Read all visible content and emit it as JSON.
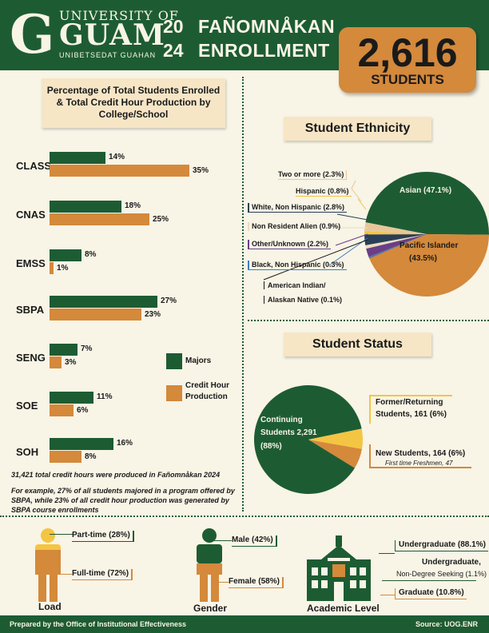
{
  "header": {
    "university_line1": "UNIVERSITY OF",
    "university_line2": "GUAM",
    "university_line3": "UNIBETSEDAT GUAHAN",
    "logo_letter": "G",
    "year_top": "20",
    "year_bottom": "24",
    "title_line1": "FAÑOMNÅKAN",
    "title_line2": "ENROLLMENT"
  },
  "total": {
    "count": "2,616",
    "label": "STUDENTS"
  },
  "college_chart": {
    "title": "Percentage of Total Students Enrolled & Total Credit Hour Production by College/School",
    "legend_majors": "Majors",
    "legend_credit": "Credit Hour Production",
    "note1": "31,421 total credit hours were produced in Fañomnåkan 2024",
    "note2": "For example, 27% of all students majored in a program offered by SBPA, while 23% of all credit hour production was generated by SBPA course enrollments"
  },
  "chart_data": [
    {
      "type": "bar",
      "categories": [
        "CLASS",
        "CNAS",
        "EMSS",
        "SBPA",
        "SENG",
        "SOE",
        "SOH"
      ],
      "series": [
        {
          "name": "Majors",
          "values": [
            14,
            18,
            8,
            27,
            7,
            11,
            16
          ],
          "color": "#1d5c33"
        },
        {
          "name": "Credit Hour Production",
          "values": [
            35,
            25,
            1,
            23,
            3,
            6,
            8
          ],
          "color": "#d4893b"
        }
      ],
      "value_labels_majors": [
        "14%",
        "18%",
        "8%",
        "27%",
        "7%",
        "11%",
        "16%"
      ],
      "value_labels_credit": [
        "35%",
        "25%",
        "1%",
        "23%",
        "3%",
        "6%",
        "8%"
      ],
      "title": "Percentage of Total Students Enrolled & Total Credit Hour Production by College/School"
    },
    {
      "type": "pie",
      "title": "Student Ethnicity",
      "slices": [
        {
          "label": "Asian (47.1%)",
          "value": 47.1,
          "color": "#1d5c33"
        },
        {
          "label": "Two or more (2.3%)",
          "value": 2.3,
          "color": "#e7c79a"
        },
        {
          "label": "Hispanic (0.8%)",
          "value": 0.8,
          "color": "#f4c542"
        },
        {
          "label": "White, Non Hispanic (2.8%)",
          "value": 2.8,
          "color": "#2a3f57"
        },
        {
          "label": "Non Resident Alien (0.9%)",
          "value": 0.9,
          "color": "#e9dcc0"
        },
        {
          "label": "Other/Unknown (2.2%)",
          "value": 2.2,
          "color": "#6b3e86"
        },
        {
          "label": "Black, Non Hispanic (0.3%)",
          "value": 0.3,
          "color": "#3c7dc0"
        },
        {
          "label": "American Indian/ Alaskan Native (0.1%)",
          "value": 0.1,
          "color": "#1a1a1a"
        },
        {
          "label": "Pacific Islander (43.5%)",
          "value": 43.5,
          "color": "#d4893b"
        }
      ]
    },
    {
      "type": "pie",
      "title": "Student Status",
      "slices": [
        {
          "label": "Continuing Students 2,291 (88%)",
          "value": 88,
          "color": "#1d5c33"
        },
        {
          "label": "Former/Returning Students, 161 (6%)",
          "value": 6,
          "color": "#f4c542"
        },
        {
          "label": "New Students, 164 (6%)",
          "value": 6,
          "color": "#d4893b"
        }
      ]
    }
  ],
  "ethnicity": {
    "title": "Student Ethnicity",
    "asian": "Asian (47.1%)",
    "pacific1": "Pacific Islander",
    "pacific2": "(43.5%)",
    "two_or_more": "Two or more (2.3%)",
    "hispanic": "Hispanic (0.8%)",
    "white": "White, Non Hispanic (2.8%)",
    "nonresident": "Non Resident Alien (0.9%)",
    "other": "Other/Unknown (2.2%)",
    "black": "Black, Non Hispanic (0.3%)",
    "amind1": "American Indian/",
    "amind2": "Alaskan Native (0.1%)"
  },
  "status": {
    "title": "Student Status",
    "continuing1": "Continuing",
    "continuing2": "Students  2,291",
    "continuing3": "(88%)",
    "former1": "Former/Returning",
    "former2": "Students, 161 (6%)",
    "new1": "New Students, 164 (6%)",
    "new2": "First time Freshmen, 47"
  },
  "bottom": {
    "load_title": "Load",
    "part_time": "Part-time (28%)",
    "full_time": "Full-time (72%)",
    "load_values": [
      28,
      72
    ],
    "gender_title": "Gender",
    "male": "Male (42%)",
    "female": "Female (58%)",
    "gender_values": [
      42,
      58
    ],
    "academic_title": "Academic Level",
    "undergrad": "Undergraduate (88.1%)",
    "undergrad_nd1": "Undergraduate,",
    "undergrad_nd2": "Non-Degree Seeking (1.1%)",
    "graduate": "Graduate (10.8%)"
  },
  "footer": {
    "prepared": "Prepared by the Office of Institutional Effectiveness",
    "source": "Source: UOG.ENR"
  },
  "colors": {
    "green": "#1d5c33",
    "orange": "#d4893b",
    "cream": "#f8f4e6",
    "yellow": "#f4c542"
  }
}
